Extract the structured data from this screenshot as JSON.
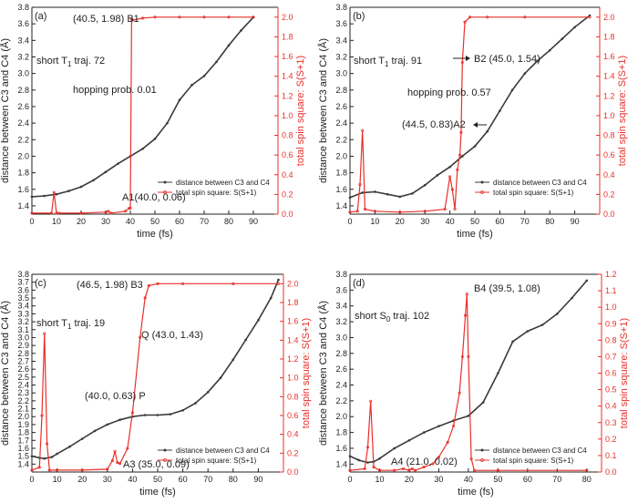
{
  "chart_data": [
    {
      "type": "line",
      "panel_label": "(a)",
      "title": "short T1 traj. 72",
      "title_main": "short T",
      "title_sub": "1",
      "title_rest": " traj. 72",
      "xlabel": "time (fs)",
      "ylabel_left": "distance between C3 and C4 (Å)",
      "ylabel_right": "total spin square: S(S+1)",
      "xlim": [
        0,
        100
      ],
      "ylim_left": [
        1.3,
        3.8
      ],
      "ylim_right": [
        0,
        2.1
      ],
      "x_ticks": [
        0,
        10,
        20,
        30,
        40,
        50,
        60,
        70,
        80,
        90
      ],
      "y_left_ticks": [
        1.4,
        1.6,
        1.8,
        2.0,
        2.2,
        2.4,
        2.6,
        2.8,
        3.0,
        3.2,
        3.4,
        3.6,
        3.8
      ],
      "y_right_ticks": [
        0.0,
        0.2,
        0.4,
        0.6,
        0.8,
        1.0,
        1.2,
        1.4,
        1.6,
        1.8,
        2.0
      ],
      "legend": [
        "distance between C3 and C4",
        "total spin square: S(S+1)"
      ],
      "series": [
        {
          "name": "distance between C3 and C4",
          "axis": "left",
          "color": "#3a3a3a",
          "x": [
            0,
            5,
            10,
            15,
            20,
            25,
            30,
            35,
            40,
            45,
            50,
            55,
            60,
            65,
            70,
            75,
            80,
            85,
            90
          ],
          "y": [
            1.51,
            1.52,
            1.54,
            1.58,
            1.63,
            1.71,
            1.81,
            1.91,
            2.0,
            2.09,
            2.21,
            2.4,
            2.68,
            2.86,
            2.97,
            3.14,
            3.34,
            3.52,
            3.68
          ]
        },
        {
          "name": "total spin square: S(S+1)",
          "axis": "right",
          "color": "#e8302a",
          "x": [
            0,
            8,
            9,
            10,
            11,
            20,
            30,
            31,
            32,
            38,
            39.5,
            40,
            40.5,
            41,
            45,
            50,
            60,
            70,
            80,
            90
          ],
          "y": [
            0.01,
            0.01,
            0.22,
            0.01,
            0.01,
            0.01,
            0.02,
            0.03,
            0.01,
            0.03,
            0.06,
            0.06,
            1.98,
            1.97,
            1.99,
            2.0,
            2.0,
            2.0,
            2.0,
            2.0
          ]
        }
      ],
      "annotations": [
        {
          "text": "(40.5, 1.98)",
          "xs": 40.5,
          "ys": 1.98,
          "label": "B1"
        },
        {
          "text": "A1(40.0, 0.06)",
          "xs": 40.0,
          "ys": 0.06
        },
        {
          "text": "hopping prob. 0.01"
        }
      ]
    },
    {
      "type": "line",
      "panel_label": "(b)",
      "title": "short T1 traj. 91",
      "title_main": "short T",
      "title_sub": "1",
      "title_rest": " traj. 91",
      "xlabel": "time (fs)",
      "ylabel_left": "distance between C3 and C4 (Å)",
      "ylabel_right": "total spin square: S(S+1)",
      "xlim": [
        0,
        100
      ],
      "ylim_left": [
        1.3,
        3.8
      ],
      "ylim_right": [
        0,
        2.1
      ],
      "x_ticks": [
        0,
        10,
        20,
        30,
        40,
        50,
        60,
        70,
        80,
        90
      ],
      "y_left_ticks": [
        1.4,
        1.6,
        1.8,
        2.0,
        2.2,
        2.4,
        2.6,
        2.8,
        3.0,
        3.2,
        3.4,
        3.6,
        3.8
      ],
      "y_right_ticks": [
        0.0,
        0.2,
        0.4,
        0.6,
        0.8,
        1.0,
        1.2,
        1.4,
        1.6,
        1.8,
        2.0
      ],
      "legend": [
        "distance between C3 and C4",
        "total spin square: S(S+1)"
      ],
      "series": [
        {
          "name": "distance between C3 and C4",
          "axis": "left",
          "color": "#3a3a3a",
          "x": [
            0,
            5,
            10,
            15,
            20,
            25,
            30,
            35,
            40,
            45,
            50,
            55,
            60,
            65,
            70,
            75,
            80,
            85,
            90,
            96
          ],
          "y": [
            1.5,
            1.56,
            1.57,
            1.54,
            1.51,
            1.55,
            1.65,
            1.77,
            1.87,
            2.0,
            2.12,
            2.3,
            2.55,
            2.8,
            3.0,
            3.15,
            3.28,
            3.42,
            3.56,
            3.7
          ]
        },
        {
          "name": "total spin square: S(S+1)",
          "axis": "right",
          "color": "#e8302a",
          "x": [
            0,
            3,
            4,
            5,
            6,
            10,
            20,
            30,
            38,
            40,
            41,
            42,
            43,
            44,
            44.5,
            45,
            46,
            48,
            55,
            70,
            96
          ],
          "y": [
            0.02,
            0.03,
            0.3,
            0.85,
            0.05,
            0.03,
            0.02,
            0.03,
            0.05,
            0.38,
            0.25,
            0.05,
            0.45,
            0.6,
            0.83,
            1.54,
            1.95,
            2.0,
            2.0,
            2.0,
            2.0
          ]
        }
      ],
      "annotations": [
        {
          "text": "B2 (45.0, 1.54)",
          "xs": 45.0,
          "ys": 1.54
        },
        {
          "text": "(44.5, 0.83)A2",
          "xs": 44.5,
          "ys": 0.83
        },
        {
          "text": "hopping prob. 0.57"
        }
      ]
    },
    {
      "type": "line",
      "panel_label": "(c)",
      "title": "short T1 traj. 19",
      "title_main": "short T",
      "title_sub": "1",
      "title_rest": " traj. 19",
      "xlabel": "time (fs)",
      "ylabel_left": "distance between C3 and C4 (Å)",
      "ylabel_right": "total spin square: S(S+1)",
      "xlim": [
        0,
        100
      ],
      "ylim_left": [
        1.3,
        3.8
      ],
      "ylim_right": [
        0,
        2.1
      ],
      "x_ticks": [
        0,
        10,
        20,
        30,
        40,
        50,
        60,
        70,
        80,
        90
      ],
      "y_left_ticks": [
        1.4,
        1.5,
        1.6,
        1.7,
        1.8,
        1.9,
        2.0,
        2.1,
        2.2,
        2.3,
        2.4,
        2.5,
        2.6,
        2.7,
        2.8,
        2.9,
        3.0,
        3.1,
        3.2,
        3.3,
        3.4,
        3.5,
        3.6,
        3.7,
        3.8
      ],
      "y_right_ticks": [
        0.0,
        0.2,
        0.4,
        0.6,
        0.8,
        1.0,
        1.2,
        1.4,
        1.6,
        1.8,
        2.0
      ],
      "legend": [
        "distance between C3 and C4",
        "total spin square: S(S+1)"
      ],
      "series": [
        {
          "name": "distance between C3 and C4",
          "axis": "left",
          "color": "#3a3a3a",
          "x": [
            0,
            3,
            5,
            8,
            10,
            15,
            20,
            25,
            30,
            35,
            40,
            45,
            50,
            55,
            60,
            65,
            70,
            75,
            80,
            85,
            90,
            95,
            98
          ],
          "y": [
            1.5,
            1.48,
            1.47,
            1.49,
            1.53,
            1.62,
            1.72,
            1.82,
            1.9,
            1.96,
            2.0,
            2.02,
            2.02,
            2.03,
            2.08,
            2.17,
            2.31,
            2.49,
            2.72,
            2.97,
            3.22,
            3.5,
            3.73
          ]
        },
        {
          "name": "total spin square: S(S+1)",
          "axis": "right",
          "color": "#e8302a",
          "x": [
            0,
            3,
            4,
            5,
            6,
            7,
            10,
            20,
            30,
            32,
            33,
            34,
            35,
            38,
            40,
            43,
            45,
            46.5,
            50,
            60,
            80,
            98
          ],
          "y": [
            0.02,
            0.05,
            0.6,
            1.47,
            0.3,
            0.02,
            0.02,
            0.02,
            0.03,
            0.12,
            0.22,
            0.1,
            0.09,
            0.25,
            0.63,
            1.43,
            1.85,
            1.98,
            2.0,
            2.0,
            2.0,
            2.0
          ]
        }
      ],
      "annotations": [
        {
          "text": "(46.5, 1.98) B3",
          "xs": 46.5,
          "ys": 1.98
        },
        {
          "text": "Q (43.0, 1.43)",
          "xs": 43.0,
          "ys": 1.43
        },
        {
          "text": "(40.0, 0.63) P",
          "xs": 40.0,
          "ys": 0.63
        },
        {
          "text": "A3 (35.0, 0.09)",
          "xs": 35.0,
          "ys": 0.09
        }
      ]
    },
    {
      "type": "line",
      "panel_label": "(d)",
      "title": "short S0 traj. 102",
      "title_main": "short S",
      "title_sub": "0",
      "title_rest": " traj. 102",
      "xlabel": "time (fs)",
      "ylabel_left": "distance between C3 and C4 (Å)",
      "ylabel_right": "total spin square: S(S+1)",
      "xlim": [
        0,
        85
      ],
      "ylim_left": [
        1.3,
        3.8
      ],
      "ylim_right": [
        0,
        1.2
      ],
      "x_ticks": [
        0,
        10,
        20,
        30,
        40,
        50,
        60,
        70,
        80
      ],
      "y_left_ticks": [
        1.4,
        1.6,
        1.8,
        2.0,
        2.2,
        2.4,
        2.6,
        2.8,
        3.0,
        3.2,
        3.4,
        3.6,
        3.8
      ],
      "y_right_ticks": [
        0.0,
        0.1,
        0.2,
        0.3,
        0.4,
        0.5,
        0.6,
        0.7,
        0.8,
        0.9,
        1.0,
        1.1,
        1.2
      ],
      "legend": [
        "distance between C3 and C4",
        "total spin square: S(S+1)"
      ],
      "series": [
        {
          "name": "distance between C3 and C4",
          "axis": "left",
          "color": "#3a3a3a",
          "x": [
            0,
            3,
            6,
            8,
            10,
            15,
            20,
            25,
            30,
            35,
            40,
            45,
            50,
            55,
            60,
            65,
            70,
            75,
            80
          ],
          "y": [
            1.5,
            1.45,
            1.42,
            1.43,
            1.47,
            1.6,
            1.7,
            1.8,
            1.88,
            1.95,
            2.01,
            2.18,
            2.55,
            2.95,
            3.08,
            3.16,
            3.3,
            3.5,
            3.72
          ]
        },
        {
          "name": "total spin square: S(S+1)",
          "axis": "right",
          "color": "#e8302a",
          "x": [
            0,
            5,
            6,
            7,
            8,
            10,
            15,
            18,
            20,
            21,
            22,
            25,
            28,
            30,
            33,
            35,
            37,
            38,
            39,
            39.5,
            40,
            41,
            42,
            50,
            80
          ],
          "y": [
            0.01,
            0.02,
            0.15,
            0.43,
            0.03,
            0.01,
            0.01,
            0.02,
            0.01,
            0.02,
            0.01,
            0.03,
            0.05,
            0.09,
            0.18,
            0.28,
            0.48,
            0.7,
            0.95,
            1.08,
            0.7,
            0.08,
            0.01,
            0.01,
            0.01
          ]
        }
      ],
      "annotations": [
        {
          "text": "B4 (39.5, 1.08)",
          "xs": 39.5,
          "ys": 1.08
        },
        {
          "text": "A4 (21.0, 0.02)",
          "xs": 21.0,
          "ys": 0.02
        }
      ]
    }
  ]
}
